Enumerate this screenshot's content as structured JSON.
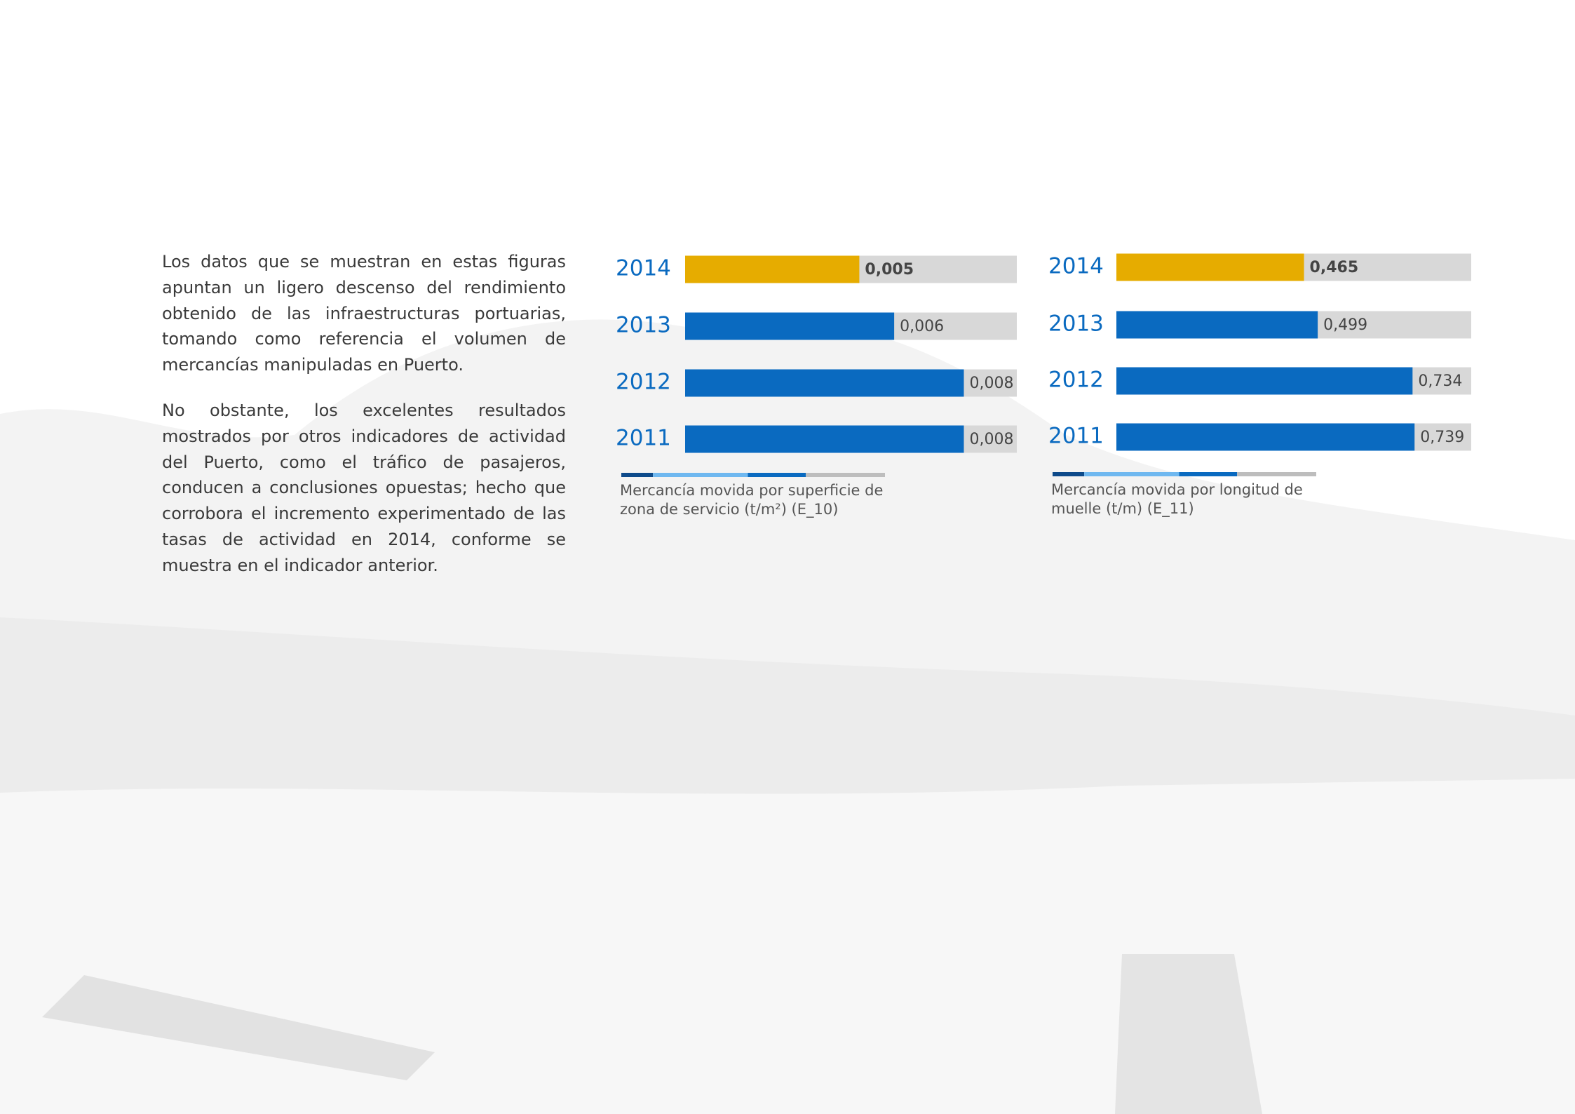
{
  "text": {
    "paragraphs": [
      "Los datos que se muestran en estas figuras apuntan un ligero descenso del rendimiento obtenido de las infraestructuras portuarias, tomando como referencia el volumen de mercancías manipuladas en Puerto.",
      "No obstante, los excelentes resultados mostrados por otros indicadores de actividad del Puerto, como el tráfico de pasajeros, conducen a conclusiones opuestas; hecho que corrobora el incremento experimentado de las tasas de actividad en 2014, conforme se muestra en el indicador anterior."
    ]
  },
  "chart_data": [
    {
      "type": "bar",
      "title": "Mercancía movida por superficie de zona de servicio (t/m²) (E_10)",
      "categories": [
        "2014",
        "2013",
        "2012",
        "2011"
      ],
      "values": [
        0.005,
        0.006,
        0.008,
        0.008
      ],
      "value_labels": [
        "0,005",
        "0,006",
        "0,008",
        "0,008"
      ],
      "colors": [
        "#e6ac00",
        "#0a6ac0",
        "#0a6ac0",
        "#0a6ac0"
      ]
    },
    {
      "type": "bar",
      "title": "Mercancía movida por longitud de muelle (t/m) (E_11)",
      "categories": [
        "2014",
        "2013",
        "2012",
        "2011"
      ],
      "values": [
        0.465,
        0.499,
        0.734,
        0.739
      ],
      "value_labels": [
        "0,465",
        "0,499",
        "0,734",
        "0,739"
      ],
      "colors": [
        "#e6ac00",
        "#0a6ac0",
        "#0a6ac0",
        "#0a6ac0"
      ]
    }
  ]
}
